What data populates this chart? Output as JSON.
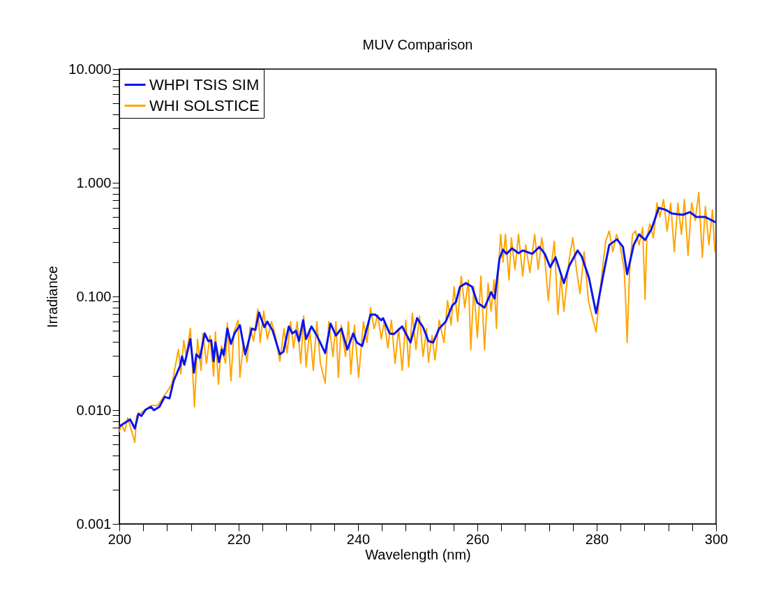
{
  "chart_data": {
    "type": "line",
    "title": "MUV Comparison",
    "xlabel": "Wavelength (nm)",
    "ylabel": "Irradiance",
    "log": "y",
    "grid": false,
    "legend": "top left",
    "line_style": "solid",
    "xlim": [
      200,
      300
    ],
    "ylim": [
      0.001,
      10
    ],
    "xticks": [
      200,
      {
        "value": 204,
        "label": null
      },
      {
        "value": 208,
        "label": null
      },
      {
        "value": 212,
        "label": null
      },
      {
        "value": 216,
        "label": null
      },
      220,
      {
        "value": 224,
        "label": null
      },
      {
        "value": 228,
        "label": null
      },
      {
        "value": 232,
        "label": null
      },
      {
        "value": 236,
        "label": null
      },
      240,
      {
        "value": 244,
        "label": null
      },
      {
        "value": 248,
        "label": null
      },
      {
        "value": 252,
        "label": null
      },
      {
        "value": 256,
        "label": null
      },
      260,
      {
        "value": 264,
        "label": null
      },
      {
        "value": 268,
        "label": null
      },
      {
        "value": 272,
        "label": null
      },
      {
        "value": 276,
        "label": null
      },
      280,
      {
        "value": 284,
        "label": null
      },
      {
        "value": 288,
        "label": null
      },
      {
        "value": 292,
        "label": null
      },
      {
        "value": 296,
        "label": null
      },
      300
    ],
    "yticks": [
      {
        "value": 0.001,
        "label": "0.001"
      },
      {
        "value": 0.002,
        "label": null
      },
      {
        "value": 0.003,
        "label": null
      },
      {
        "value": 0.004,
        "label": null
      },
      {
        "value": 0.005,
        "label": null
      },
      {
        "value": 0.006,
        "label": null
      },
      {
        "value": 0.007,
        "label": null
      },
      {
        "value": 0.008,
        "label": null
      },
      {
        "value": 0.009,
        "label": null
      },
      {
        "value": 0.01,
        "label": "0.010"
      },
      {
        "value": 0.02,
        "label": null
      },
      {
        "value": 0.03,
        "label": null
      },
      {
        "value": 0.04,
        "label": null
      },
      {
        "value": 0.05,
        "label": null
      },
      {
        "value": 0.06,
        "label": null
      },
      {
        "value": 0.07,
        "label": null
      },
      {
        "value": 0.08,
        "label": null
      },
      {
        "value": 0.09,
        "label": null
      },
      {
        "value": 0.1,
        "label": "0.100"
      },
      {
        "value": 0.2,
        "label": null
      },
      {
        "value": 0.3,
        "label": null
      },
      {
        "value": 0.4,
        "label": null
      },
      {
        "value": 0.5,
        "label": null
      },
      {
        "value": 0.6,
        "label": null
      },
      {
        "value": 0.7,
        "label": null
      },
      {
        "value": 0.8,
        "label": null
      },
      {
        "value": 0.9,
        "label": null
      },
      {
        "value": 1,
        "label": "1.000"
      },
      {
        "value": 2,
        "label": null
      },
      {
        "value": 3,
        "label": null
      },
      {
        "value": 4,
        "label": null
      },
      {
        "value": 5,
        "label": null
      },
      {
        "value": 6,
        "label": null
      },
      {
        "value": 7,
        "label": null
      },
      {
        "value": 8,
        "label": null
      },
      {
        "value": 9,
        "label": null
      },
      {
        "value": 10,
        "label": "10.000"
      }
    ],
    "series": [
      {
        "name": "WHPI TSIS SIM",
        "color": "#0a14f0",
        "x": [
          200.0,
          201.8,
          202.6,
          203.2,
          203.7,
          204.4,
          205.3,
          205.8,
          206.7,
          207.6,
          208.4,
          209.1,
          210.2,
          210.5,
          210.9,
          211.9,
          212.5,
          212.9,
          213.5,
          214.3,
          214.9,
          215.4,
          215.8,
          216.1,
          216.7,
          217.2,
          217.5,
          218.1,
          218.7,
          219.3,
          220.2,
          221.1,
          221.4,
          222.2,
          222.8,
          223.4,
          224.3,
          224.8,
          225.7,
          226.9,
          227.5,
          228.4,
          229.0,
          229.6,
          230.1,
          230.8,
          231.3,
          232.2,
          233.1,
          234.5,
          235.4,
          236.3,
          237.2,
          238.2,
          239.2,
          239.8,
          240.7,
          242.1,
          242.9,
          243.9,
          244.2,
          245.3,
          246.0,
          247.4,
          248.8,
          249.9,
          250.9,
          251.8,
          252.6,
          253.6,
          254.7,
          255.8,
          256.4,
          257.1,
          258.1,
          259.1,
          260.0,
          261.2,
          262.3,
          262.9,
          263.7,
          264.3,
          264.9,
          265.8,
          266.9,
          267.6,
          269.2,
          270.4,
          271.3,
          272.2,
          273.1,
          274.5,
          275.4,
          276.8,
          277.5,
          278.7,
          279.9,
          281.1,
          282.1,
          283.4,
          284.4,
          285.1,
          286.2,
          287.1,
          288.1,
          289.2,
          290.4,
          291.6,
          292.6,
          294.4,
          295.6,
          296.7,
          298.2,
          299.8
        ],
        "values": [
          0.0072,
          0.0083,
          0.0069,
          0.0093,
          0.0089,
          0.0101,
          0.0107,
          0.01,
          0.0107,
          0.0131,
          0.0127,
          0.0181,
          0.0247,
          0.0297,
          0.0251,
          0.0423,
          0.0214,
          0.031,
          0.0288,
          0.0473,
          0.0405,
          0.0411,
          0.0269,
          0.0394,
          0.0265,
          0.0342,
          0.0305,
          0.0522,
          0.0383,
          0.0473,
          0.056,
          0.031,
          0.0356,
          0.0522,
          0.0508,
          0.0723,
          0.0537,
          0.0601,
          0.05,
          0.031,
          0.0327,
          0.0545,
          0.0473,
          0.05,
          0.0405,
          0.0618,
          0.0423,
          0.0545,
          0.0453,
          0.0318,
          0.0577,
          0.0453,
          0.0522,
          0.0342,
          0.0473,
          0.0394,
          0.0367,
          0.0692,
          0.0692,
          0.0618,
          0.0645,
          0.0473,
          0.0467,
          0.0545,
          0.0394,
          0.0645,
          0.0537,
          0.0405,
          0.0394,
          0.0522,
          0.0601,
          0.0832,
          0.0893,
          0.122,
          0.131,
          0.122,
          0.0881,
          0.0798,
          0.109,
          0.0959,
          0.214,
          0.258,
          0.237,
          0.265,
          0.24,
          0.254,
          0.237,
          0.273,
          0.237,
          0.181,
          0.221,
          0.131,
          0.186,
          0.254,
          0.224,
          0.146,
          0.0713,
          0.155,
          0.284,
          0.318,
          0.273,
          0.157,
          0.284,
          0.352,
          0.314,
          0.394,
          0.601,
          0.577,
          0.537,
          0.522,
          0.552,
          0.5,
          0.5,
          0.453
        ]
      },
      {
        "name": "WHI SOLSTICE",
        "color": "#ffa500",
        "x": [
          200.0,
          200.4,
          200.9,
          201.4,
          202.0,
          202.6,
          202.9,
          204.1,
          205.3,
          206.4,
          207.6,
          208.8,
          209.9,
          210.3,
          210.8,
          211.2,
          211.9,
          212.6,
          213.1,
          213.7,
          214.0,
          214.6,
          215.2,
          215.8,
          216.1,
          216.6,
          217.1,
          217.8,
          218.1,
          218.7,
          219.2,
          219.9,
          220.2,
          220.8,
          221.4,
          221.9,
          222.5,
          223.2,
          223.6,
          224.2,
          224.8,
          225.5,
          226.2,
          226.9,
          227.6,
          228.1,
          228.7,
          229.2,
          229.8,
          230.4,
          230.9,
          231.3,
          231.9,
          232.5,
          233.1,
          233.7,
          234.5,
          235.1,
          235.8,
          236.3,
          236.7,
          237.2,
          237.9,
          238.4,
          238.8,
          239.4,
          240.1,
          240.9,
          241.5,
          242.1,
          242.7,
          243.3,
          243.9,
          244.4,
          245.0,
          245.6,
          246.2,
          246.8,
          247.4,
          248.0,
          248.5,
          249.1,
          249.7,
          250.3,
          250.9,
          251.5,
          251.8,
          252.4,
          252.9,
          253.6,
          254.4,
          255.0,
          255.6,
          256.1,
          256.7,
          257.3,
          257.9,
          258.5,
          258.9,
          259.4,
          260.0,
          260.6,
          261.2,
          261.8,
          262.3,
          262.8,
          263.2,
          263.5,
          263.9,
          264.3,
          264.7,
          265.3,
          265.7,
          266.3,
          266.9,
          267.6,
          268.1,
          268.8,
          269.6,
          270.2,
          270.8,
          271.3,
          271.9,
          272.3,
          272.9,
          273.5,
          274.0,
          274.5,
          275.4,
          276.0,
          276.6,
          277.2,
          277.9,
          278.6,
          279.3,
          279.9,
          280.4,
          280.9,
          281.5,
          282.1,
          282.7,
          283.3,
          283.9,
          284.6,
          284.9,
          285.1,
          285.5,
          286.0,
          286.5,
          287.1,
          287.7,
          288.1,
          288.4,
          288.9,
          289.5,
          290.1,
          290.6,
          291.2,
          291.8,
          292.4,
          293.0,
          293.6,
          294.2,
          294.7,
          295.3,
          295.9,
          296.5,
          297.1,
          297.7,
          298.2,
          298.8,
          299.4,
          299.8
        ],
        "values": [
          0.0065,
          0.0075,
          0.0065,
          0.0086,
          0.0067,
          0.0052,
          0.0089,
          0.0099,
          0.011,
          0.011,
          0.0136,
          0.0169,
          0.0342,
          0.0208,
          0.0411,
          0.0297,
          0.0522,
          0.0107,
          0.0423,
          0.0224,
          0.0473,
          0.0258,
          0.0453,
          0.02,
          0.0486,
          0.0169,
          0.0367,
          0.0258,
          0.0585,
          0.0181,
          0.0486,
          0.0618,
          0.0194,
          0.0394,
          0.0265,
          0.0537,
          0.0405,
          0.0776,
          0.0394,
          0.0743,
          0.0423,
          0.0601,
          0.0441,
          0.0269,
          0.0522,
          0.0318,
          0.0601,
          0.0352,
          0.0601,
          0.0258,
          0.0673,
          0.024,
          0.0522,
          0.0224,
          0.0601,
          0.0258,
          0.0173,
          0.0601,
          0.0297,
          0.0601,
          0.0194,
          0.056,
          0.0297,
          0.0601,
          0.0208,
          0.056,
          0.0194,
          0.0601,
          0.0394,
          0.0798,
          0.0522,
          0.0692,
          0.0423,
          0.0601,
          0.0352,
          0.0618,
          0.0258,
          0.0522,
          0.0224,
          0.0618,
          0.024,
          0.0713,
          0.0342,
          0.0673,
          0.0297,
          0.0522,
          0.0265,
          0.0453,
          0.0277,
          0.0618,
          0.0394,
          0.0919,
          0.056,
          0.122,
          0.0601,
          0.151,
          0.0798,
          0.14,
          0.0342,
          0.122,
          0.0435,
          0.151,
          0.0342,
          0.131,
          0.0743,
          0.14,
          0.0522,
          0.162,
          0.352,
          0.2,
          0.352,
          0.14,
          0.328,
          0.173,
          0.352,
          0.151,
          0.284,
          0.162,
          0.352,
          0.173,
          0.328,
          0.214,
          0.0919,
          0.173,
          0.305,
          0.0692,
          0.151,
          0.0743,
          0.214,
          0.328,
          0.173,
          0.106,
          0.247,
          0.0919,
          0.0645,
          0.0486,
          0.0919,
          0.162,
          0.305,
          0.377,
          0.247,
          0.352,
          0.284,
          0.173,
          0.0798,
          0.0394,
          0.162,
          0.352,
          0.377,
          0.284,
          0.405,
          0.0945,
          0.328,
          0.435,
          0.328,
          0.664,
          0.5,
          0.713,
          0.377,
          0.664,
          0.247,
          0.664,
          0.352,
          0.713,
          0.23,
          0.664,
          0.466,
          0.82,
          0.221,
          0.618,
          0.284,
          0.577,
          0.247
        ]
      }
    ]
  }
}
